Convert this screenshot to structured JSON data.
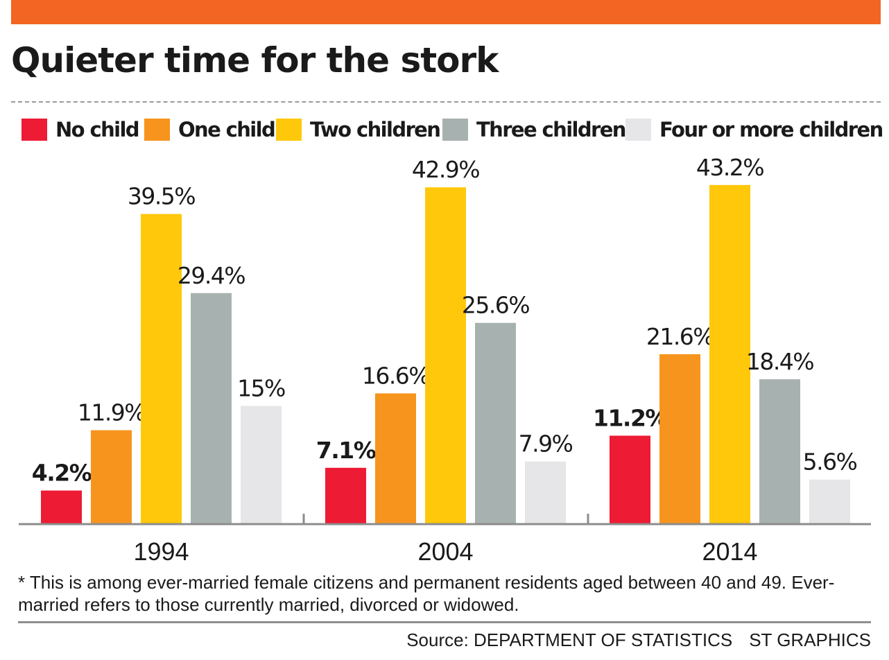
{
  "title": "Quieter time for the stork",
  "colors": {
    "top_bar": "#f26522",
    "baseline": "#8c8c8c",
    "rule": "#8e8e8e"
  },
  "chart_data": {
    "type": "bar",
    "title": "Quieter time for the stork",
    "categories": [
      "1994",
      "2004",
      "2014"
    ],
    "series": [
      {
        "name": "No child",
        "color": "#ed1b34",
        "values": [
          4.2,
          7.1,
          11.2
        ],
        "labels": [
          "4.2%",
          "7.1%",
          "11.2%"
        ]
      },
      {
        "name": "One child",
        "color": "#f7941e",
        "values": [
          11.9,
          16.6,
          21.6
        ],
        "labels": [
          "11.9%",
          "16.6%",
          "21.6%"
        ]
      },
      {
        "name": "Two children",
        "color": "#ffc80a",
        "values": [
          39.5,
          42.9,
          43.2
        ],
        "labels": [
          "39.5%",
          "42.9%",
          "43.2%"
        ]
      },
      {
        "name": "Three children",
        "color": "#a7b2b0",
        "values": [
          29.4,
          25.6,
          18.4
        ],
        "labels": [
          "29.4%",
          "25.6%",
          "18.4%"
        ]
      },
      {
        "name": "Four or more children",
        "color": "#e6e6e8",
        "values": [
          15,
          7.9,
          5.6
        ],
        "labels": [
          "15%",
          "7.9%",
          "5.6%"
        ]
      }
    ],
    "bold_label_series": "No child",
    "xlabel": "",
    "ylabel": "",
    "ylim": [
      0,
      45
    ],
    "grid": false,
    "legend": "top"
  },
  "footnote": "* This is among ever-married female citizens and permanent residents aged between 40 and 49. Ever-married refers to those currently married, divorced or widowed.",
  "source": {
    "text": "Source: DEPARTMENT OF STATISTICS",
    "credit": "ST GRAPHICS"
  }
}
